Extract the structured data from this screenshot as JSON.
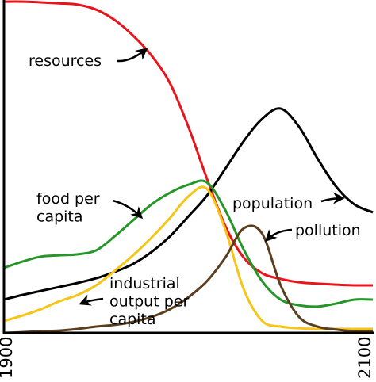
{
  "chart_data": {
    "type": "line",
    "x": [
      1900,
      1910,
      1920,
      1930,
      1940,
      1950,
      1960,
      1970,
      1980,
      1990,
      2000,
      2010,
      2020,
      2030,
      2040,
      2050,
      2060,
      2070,
      2080,
      2090,
      2100
    ],
    "xlim": [
      1900,
      2100
    ],
    "xticks": [
      1900,
      2100
    ],
    "ylim": [
      0,
      100
    ],
    "series": [
      {
        "color": "#e8141b",
        "values": [
          99.5,
          99.5,
          99.3,
          99,
          98.6,
          97.1,
          94,
          89.3,
          83.3,
          75,
          61.9,
          46.4,
          32.1,
          22.6,
          17.9,
          16.2,
          15.2,
          14.8,
          14.5,
          14.3,
          14.3
        ]
      },
      {
        "color": "#000000",
        "values": [
          10,
          11.4,
          12.6,
          13.8,
          15,
          16.4,
          18.3,
          20.7,
          24.3,
          29,
          35,
          41.2,
          49.3,
          57.6,
          64.3,
          67.4,
          61.9,
          52.4,
          44,
          38.6,
          36.2
        ]
      },
      {
        "color": "#26962b",
        "values": [
          19.5,
          21.4,
          22.9,
          23.3,
          23.6,
          24.8,
          29,
          33.8,
          38.6,
          42.1,
          44.5,
          45.2,
          36.9,
          25,
          15.5,
          10,
          8.3,
          7.9,
          8.8,
          10,
          10
        ]
      },
      {
        "color": "#f6c515",
        "values": [
          3.6,
          5.2,
          7.1,
          9.5,
          11.4,
          14.3,
          18.6,
          23.3,
          28.6,
          34.5,
          41,
          43.3,
          31,
          13.1,
          3.6,
          1.9,
          1.4,
          1.2,
          1.2,
          1.2,
          1.2
        ]
      },
      {
        "color": "#5a3e1e",
        "values": [
          0,
          0.2,
          0.5,
          0.7,
          1.2,
          1.9,
          2.4,
          3.3,
          4.8,
          7.1,
          10.7,
          15.5,
          22.6,
          31.4,
          29.8,
          14.3,
          4.8,
          1.9,
          1,
          0.5,
          0.5
        ]
      }
    ],
    "annotations": [
      {
        "lines": [
          "resources"
        ]
      },
      {
        "lines": [
          "population"
        ]
      },
      {
        "lines": [
          "food per",
          "capita"
        ]
      },
      {
        "lines": [
          "industrial",
          "output per",
          "capita"
        ]
      },
      {
        "lines": [
          "pollution"
        ]
      }
    ]
  }
}
